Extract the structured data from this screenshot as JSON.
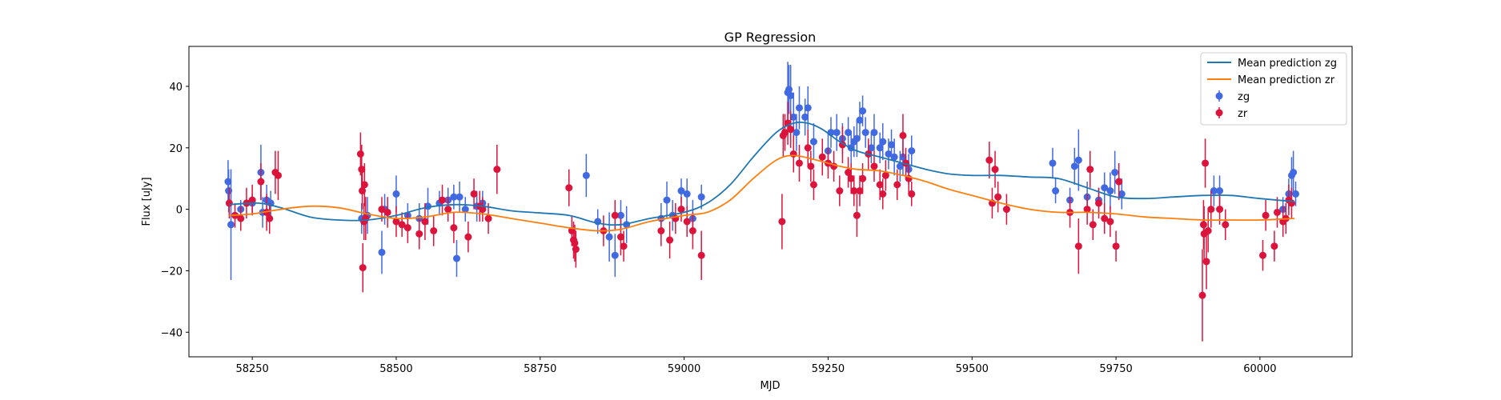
{
  "chart_data": {
    "type": "scatter",
    "title": "GP Regression",
    "xlabel": "MJD",
    "ylabel": "Flux [uJy]",
    "xlim": [
      58140,
      60160
    ],
    "ylim": [
      -48,
      53
    ],
    "xticks": [
      58250,
      58500,
      58750,
      59000,
      59250,
      59500,
      59750,
      60000
    ],
    "yticks": [
      -40,
      -20,
      0,
      20,
      40
    ],
    "legend_position": "upper right",
    "colors": {
      "mean_zg": "#1f77b4",
      "mean_zr": "#ff7f0e",
      "zg": "#4169e1",
      "zr": "#dc143c"
    },
    "mean_prediction": [
      {
        "name": "Mean prediction zg",
        "x": [
          58210,
          58260,
          58300,
          58350,
          58400,
          58450,
          58500,
          58550,
          58600,
          58650,
          58700,
          58750,
          58800,
          58850,
          58890,
          58940,
          59000,
          59040,
          59080,
          59120,
          59160,
          59190,
          59215,
          59240,
          59270,
          59300,
          59340,
          59380,
          59420,
          59460,
          59500,
          59550,
          59600,
          59650,
          59700,
          59750,
          59800,
          59850,
          59900,
          59950,
          60000,
          60060
        ],
        "y": [
          1.5,
          2,
          0.5,
          -2.5,
          -3.5,
          -3.5,
          -2,
          0.5,
          1.5,
          1,
          -0.5,
          -1.2,
          -2,
          -4.5,
          -5,
          -3,
          -1,
          2,
          8,
          17,
          25,
          28,
          28,
          26,
          22,
          19,
          17,
          15,
          13,
          11.5,
          11,
          11,
          10.5,
          10,
          7,
          4,
          3.5,
          4,
          4.5,
          4.5,
          3.5,
          2.5
        ]
      },
      {
        "name": "Mean prediction zr",
        "x": [
          58210,
          58250,
          58300,
          58350,
          58400,
          58450,
          58500,
          58550,
          58600,
          58650,
          58700,
          58750,
          58800,
          58850,
          58890,
          58940,
          59000,
          59040,
          59080,
          59120,
          59160,
          59190,
          59230,
          59270,
          59300,
          59340,
          59380,
          59420,
          59460,
          59500,
          59550,
          59600,
          59650,
          59700,
          59750,
          59800,
          59850,
          59900,
          59950,
          60000,
          60060
        ],
        "y": [
          -2,
          -1.5,
          0,
          1,
          0.5,
          -1.5,
          -3,
          -2.5,
          -1,
          -1.5,
          -3,
          -4.5,
          -6,
          -7,
          -6.5,
          -4,
          -2,
          -1,
          3,
          10,
          16,
          17.5,
          16,
          14,
          13,
          12.5,
          11,
          9,
          6.5,
          4.5,
          2,
          0,
          -1,
          -1,
          -1.5,
          -2.5,
          -3,
          -3.5,
          -3.5,
          -3.5,
          -3
        ]
      }
    ],
    "series": [
      {
        "name": "zg",
        "points": [
          [
            58208,
            9,
            7
          ],
          [
            58209,
            6,
            7
          ],
          [
            58213,
            -5,
            18
          ],
          [
            58230,
            0,
            3
          ],
          [
            58250,
            2,
            3
          ],
          [
            58265,
            12,
            9
          ],
          [
            58268,
            -1,
            5
          ],
          [
            58275,
            3,
            5
          ],
          [
            58282,
            2,
            4
          ],
          [
            58440,
            -3,
            5
          ],
          [
            58450,
            -2,
            6
          ],
          [
            58475,
            -14,
            7
          ],
          [
            58480,
            0,
            5
          ],
          [
            58500,
            5,
            6
          ],
          [
            58520,
            -2,
            4
          ],
          [
            58540,
            -3,
            5
          ],
          [
            58555,
            1,
            6
          ],
          [
            58575,
            2,
            4
          ],
          [
            58590,
            3,
            4
          ],
          [
            58600,
            4,
            4
          ],
          [
            58605,
            -16,
            6
          ],
          [
            58610,
            4,
            5
          ],
          [
            58620,
            0,
            4
          ],
          [
            58640,
            1,
            5
          ],
          [
            58650,
            2,
            4
          ],
          [
            58830,
            11,
            7
          ],
          [
            58850,
            -4,
            4
          ],
          [
            58870,
            -9,
            8
          ],
          [
            58880,
            -15,
            7
          ],
          [
            58890,
            -2,
            5
          ],
          [
            58900,
            -5,
            6
          ],
          [
            58960,
            -3,
            5
          ],
          [
            58970,
            3,
            6
          ],
          [
            58980,
            -2,
            5
          ],
          [
            58995,
            6,
            4
          ],
          [
            59005,
            5,
            5
          ],
          [
            59015,
            -3,
            6
          ],
          [
            59030,
            4,
            4
          ],
          [
            59180,
            38,
            10
          ],
          [
            59182,
            39,
            8
          ],
          [
            59185,
            37,
            10
          ],
          [
            59190,
            30,
            8
          ],
          [
            59195,
            25,
            6
          ],
          [
            59200,
            33,
            7
          ],
          [
            59210,
            30,
            6
          ],
          [
            59215,
            33,
            7
          ],
          [
            59225,
            22,
            6
          ],
          [
            59250,
            19,
            6
          ],
          [
            59255,
            25,
            5
          ],
          [
            59265,
            25,
            6
          ],
          [
            59275,
            23,
            5
          ],
          [
            59285,
            25,
            5
          ],
          [
            59290,
            20,
            5
          ],
          [
            59295,
            22,
            5
          ],
          [
            59300,
            23,
            6
          ],
          [
            59305,
            29,
            6
          ],
          [
            59310,
            32,
            5
          ],
          [
            59315,
            25,
            5
          ],
          [
            59325,
            20,
            5
          ],
          [
            59330,
            25,
            6
          ],
          [
            59340,
            20,
            5
          ],
          [
            59345,
            22,
            6
          ],
          [
            59355,
            18,
            5
          ],
          [
            59360,
            21,
            5
          ],
          [
            59365,
            17,
            6
          ],
          [
            59375,
            14,
            5
          ],
          [
            59380,
            17,
            6
          ],
          [
            59390,
            13,
            5
          ],
          [
            59395,
            19,
            5
          ],
          [
            59640,
            15,
            5
          ],
          [
            59645,
            6,
            4
          ],
          [
            59670,
            3,
            4
          ],
          [
            59678,
            14,
            6
          ],
          [
            59685,
            16,
            10
          ],
          [
            59700,
            4,
            5
          ],
          [
            59720,
            3,
            4
          ],
          [
            59730,
            7,
            5
          ],
          [
            59740,
            6,
            6
          ],
          [
            59748,
            12,
            7
          ],
          [
            59760,
            5,
            5
          ],
          [
            59920,
            6,
            5
          ],
          [
            59930,
            6,
            5
          ],
          [
            60040,
            0,
            4
          ],
          [
            60050,
            5,
            5
          ],
          [
            60055,
            11,
            6
          ],
          [
            60058,
            12,
            7
          ],
          [
            60062,
            5,
            4
          ]
        ]
      },
      {
        "name": "zr",
        "points": [
          [
            58210,
            2,
            5
          ],
          [
            58220,
            -2,
            4
          ],
          [
            58230,
            -3,
            4
          ],
          [
            58240,
            2,
            5
          ],
          [
            58250,
            3,
            5
          ],
          [
            58265,
            9,
            6
          ],
          [
            58275,
            -1,
            6
          ],
          [
            58280,
            -3,
            5
          ],
          [
            58290,
            12,
            7
          ],
          [
            58295,
            11,
            8
          ],
          [
            58438,
            18,
            7
          ],
          [
            58440,
            13,
            8
          ],
          [
            58441,
            6,
            6
          ],
          [
            58442,
            -19,
            8
          ],
          [
            58444,
            -4,
            6
          ],
          [
            58445,
            8,
            7
          ],
          [
            58447,
            -3,
            7
          ],
          [
            58475,
            0,
            4
          ],
          [
            58485,
            -1,
            5
          ],
          [
            58500,
            -4,
            5
          ],
          [
            58510,
            -5,
            4
          ],
          [
            58520,
            -6,
            5
          ],
          [
            58540,
            -8,
            5
          ],
          [
            58550,
            -4,
            6
          ],
          [
            58565,
            -7,
            5
          ],
          [
            58580,
            3,
            5
          ],
          [
            58590,
            0,
            4
          ],
          [
            58600,
            -6,
            5
          ],
          [
            58625,
            -9,
            5
          ],
          [
            58635,
            5,
            5
          ],
          [
            58645,
            1,
            5
          ],
          [
            58650,
            0,
            4
          ],
          [
            58660,
            -3,
            5
          ],
          [
            58675,
            13,
            8
          ],
          [
            58800,
            7,
            6
          ],
          [
            58805,
            -7,
            5
          ],
          [
            58808,
            -10,
            6
          ],
          [
            58810,
            -11,
            6
          ],
          [
            58812,
            -13,
            6
          ],
          [
            58860,
            -7,
            5
          ],
          [
            58880,
            -2,
            5
          ],
          [
            58890,
            -9,
            6
          ],
          [
            58895,
            -12,
            5
          ],
          [
            58960,
            -7,
            5
          ],
          [
            58975,
            -10,
            6
          ],
          [
            58985,
            -3,
            5
          ],
          [
            58995,
            0,
            4
          ],
          [
            59005,
            -4,
            5
          ],
          [
            59015,
            -7,
            6
          ],
          [
            59030,
            -15,
            8
          ],
          [
            59170,
            -4,
            9
          ],
          [
            59172,
            24,
            7
          ],
          [
            59175,
            25,
            6
          ],
          [
            59180,
            28,
            7
          ],
          [
            59185,
            26,
            6
          ],
          [
            59190,
            18,
            6
          ],
          [
            59200,
            15,
            6
          ],
          [
            59215,
            20,
            6
          ],
          [
            59220,
            14,
            5
          ],
          [
            59225,
            8,
            5
          ],
          [
            59240,
            17,
            6
          ],
          [
            59250,
            15,
            5
          ],
          [
            59260,
            14,
            5
          ],
          [
            59270,
            6,
            5
          ],
          [
            59275,
            21,
            6
          ],
          [
            59285,
            12,
            5
          ],
          [
            59290,
            10,
            5
          ],
          [
            59295,
            6,
            5
          ],
          [
            59300,
            -2,
            7
          ],
          [
            59305,
            6,
            5
          ],
          [
            59310,
            10,
            5
          ],
          [
            59320,
            18,
            5
          ],
          [
            59330,
            14,
            5
          ],
          [
            59340,
            8,
            5
          ],
          [
            59345,
            5,
            5
          ],
          [
            59350,
            11,
            5
          ],
          [
            59370,
            8,
            5
          ],
          [
            59380,
            24,
            7
          ],
          [
            59385,
            15,
            5
          ],
          [
            59390,
            10,
            5
          ],
          [
            59395,
            5,
            4
          ],
          [
            59530,
            16,
            6
          ],
          [
            59535,
            2,
            5
          ],
          [
            59540,
            13,
            6
          ],
          [
            59545,
            4,
            5
          ],
          [
            59560,
            0,
            5
          ],
          [
            59670,
            -1,
            5
          ],
          [
            59685,
            -12,
            9
          ],
          [
            59700,
            0,
            5
          ],
          [
            59705,
            13,
            6
          ],
          [
            59710,
            -5,
            5
          ],
          [
            59720,
            2,
            5
          ],
          [
            59730,
            -3,
            5
          ],
          [
            59740,
            -4,
            5
          ],
          [
            59750,
            -12,
            5
          ],
          [
            59755,
            9,
            6
          ],
          [
            59900,
            -28,
            15
          ],
          [
            59902,
            -5,
            8
          ],
          [
            59903,
            -8,
            9
          ],
          [
            59905,
            15,
            8
          ],
          [
            59907,
            -17,
            9
          ],
          [
            59910,
            -7,
            7
          ],
          [
            59915,
            0,
            6
          ],
          [
            59930,
            0,
            5
          ],
          [
            59940,
            -5,
            5
          ],
          [
            60005,
            -15,
            5
          ],
          [
            60010,
            -2,
            5
          ],
          [
            60025,
            -12,
            5
          ],
          [
            60030,
            -1,
            5
          ],
          [
            60040,
            -4,
            5
          ],
          [
            60045,
            -3,
            5
          ],
          [
            60050,
            3,
            5
          ],
          [
            60055,
            2,
            5
          ]
        ]
      }
    ]
  }
}
